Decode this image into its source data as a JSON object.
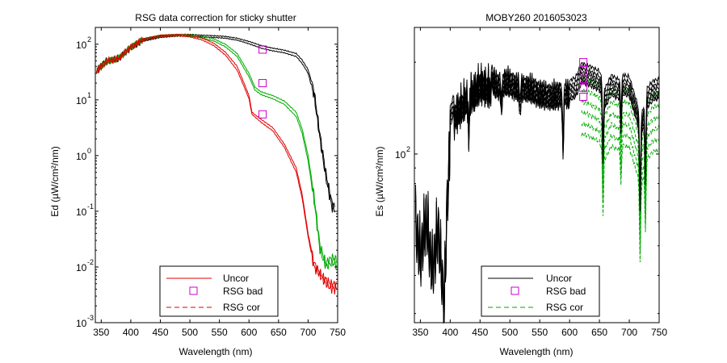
{
  "chart_data": [
    {
      "type": "line",
      "title": "RSG data correction for sticky shutter",
      "xlabel": "Wavelength (nm)",
      "ylabel": "Ed (µW/cm²/nm)",
      "xlim": [
        340,
        750
      ],
      "ylim": [
        0.001,
        200
      ],
      "y_scale": "log",
      "x_ticks": [
        350,
        400,
        450,
        500,
        550,
        600,
        650,
        700,
        750
      ],
      "y_ticks": [
        {
          "base": "10",
          "exp": "2",
          "value": 100
        },
        {
          "base": "10",
          "exp": "1",
          "value": 10
        },
        {
          "base": "10",
          "exp": "0",
          "value": 1
        },
        {
          "base": "10",
          "exp": "-1",
          "value": 0.1
        },
        {
          "base": "10",
          "exp": "-2",
          "value": 0.01
        },
        {
          "base": "10",
          "exp": "-3",
          "value": 0.001
        }
      ],
      "legend": {
        "location": "lower-center",
        "entries": [
          "Uncor",
          "RSG bad",
          "RSG cor"
        ]
      },
      "colors": {
        "uncor": "#000000",
        "green": "#00aa00",
        "red": "#e00000",
        "rsg_bad": "#cc00cc"
      },
      "series": [
        {
          "name": "Uncor",
          "x": [
            342,
            350,
            360,
            380,
            400,
            420,
            450,
            480,
            500,
            520,
            540,
            560,
            580,
            600,
            620,
            640,
            660,
            680,
            690,
            700,
            710,
            720,
            730,
            740,
            745
          ],
          "values": [
            35,
            42,
            52,
            58,
            90,
            120,
            140,
            148,
            150,
            145,
            142,
            138,
            128,
            112,
            95,
            85,
            78,
            68,
            52,
            35,
            15,
            2.5,
            0.5,
            0.15,
            0.12
          ]
        },
        {
          "name": "Uncor",
          "x": [
            342,
            350,
            360,
            380,
            400,
            420,
            450,
            480,
            500,
            520,
            540,
            560,
            580,
            600,
            620,
            640,
            660,
            680,
            690,
            700,
            710,
            720,
            730,
            740,
            745
          ],
          "values": [
            32,
            38,
            48,
            54,
            85,
            112,
            132,
            140,
            140,
            135,
            132,
            128,
            118,
            102,
            85,
            76,
            70,
            60,
            45,
            30,
            12,
            2.0,
            0.4,
            0.12,
            0.1
          ]
        },
        {
          "name": "RSG cor",
          "x": [
            342,
            350,
            360,
            380,
            400,
            420,
            450,
            480,
            500,
            520,
            540,
            560,
            580,
            600,
            610,
            620,
            640,
            660,
            680,
            690,
            700,
            710,
            720,
            730,
            740,
            748
          ],
          "values": [
            35,
            42,
            52,
            58,
            92,
            125,
            145,
            150,
            148,
            140,
            125,
            100,
            68,
            30,
            17,
            14,
            12,
            9.5,
            6.0,
            3.0,
            1.0,
            0.2,
            0.025,
            0.012,
            0.015,
            0.014
          ]
        },
        {
          "name": "RSG cor",
          "x": [
            342,
            350,
            360,
            380,
            400,
            420,
            450,
            480,
            500,
            520,
            540,
            560,
            580,
            600,
            610,
            620,
            640,
            660,
            680,
            690,
            700,
            710,
            720,
            730,
            740,
            748
          ],
          "values": [
            32,
            38,
            48,
            54,
            86,
            116,
            136,
            142,
            138,
            130,
            115,
            90,
            60,
            26,
            15,
            12.5,
            10.5,
            8.3,
            5.0,
            2.5,
            0.8,
            0.16,
            0.02,
            0.01,
            0.012,
            0.011
          ]
        },
        {
          "name": "Uncor",
          "x": [
            342,
            350,
            360,
            380,
            400,
            420,
            450,
            480,
            500,
            520,
            540,
            560,
            580,
            590,
            600,
            605,
            620,
            640,
            660,
            680,
            690,
            700,
            710,
            720,
            730,
            740,
            748
          ],
          "values": [
            35,
            42,
            52,
            58,
            92,
            125,
            145,
            150,
            145,
            130,
            105,
            72,
            40,
            22,
            12,
            6.0,
            4.5,
            3.2,
            1.6,
            0.6,
            0.2,
            0.04,
            0.012,
            0.008,
            0.006,
            0.005,
            0.005
          ]
        },
        {
          "name": "Uncor",
          "x": [
            342,
            350,
            360,
            380,
            400,
            420,
            450,
            480,
            500,
            520,
            540,
            560,
            580,
            590,
            600,
            605,
            620,
            640,
            660,
            680,
            690,
            700,
            710,
            720,
            730,
            740,
            748
          ],
          "values": [
            32,
            38,
            48,
            54,
            86,
            116,
            136,
            142,
            135,
            120,
            95,
            64,
            34,
            19,
            10.5,
            5.5,
            4.0,
            2.8,
            1.4,
            0.5,
            0.17,
            0.035,
            0.01,
            0.007,
            0.005,
            0.004,
            0.004
          ]
        }
      ],
      "rsg_bad": {
        "x": [
          623,
          623,
          623
        ],
        "values": [
          80,
          20,
          5.5
        ]
      }
    },
    {
      "type": "line",
      "title": "MOBY260  2016053023",
      "xlabel": "Wavelength (nm)",
      "ylabel": "Es (µW/cm²/nm)",
      "xlim": [
        340,
        750
      ],
      "ylim": [
        28,
        260
      ],
      "y_scale": "log",
      "y_ticks": [
        {
          "base": "10",
          "exp": "2",
          "value": 100
        }
      ],
      "x_ticks": [
        350,
        400,
        450,
        500,
        550,
        600,
        650,
        700,
        750
      ],
      "legend": {
        "location": "lower-center",
        "entries": [
          "Uncor",
          "RSG bad",
          "RSG cor"
        ]
      },
      "colors": {
        "uncor": "#000000",
        "green": "#00aa00",
        "rsg_bad": "#cc00cc"
      },
      "base_curve": {
        "x": [
          342,
          350,
          360,
          370,
          380,
          390,
          395,
          400,
          410,
          420,
          430,
          440,
          450,
          460,
          470,
          480,
          490,
          500,
          510,
          520,
          530,
          540,
          550,
          560,
          570,
          580,
          590,
          600,
          610,
          620,
          630,
          640,
          650,
          660,
          670,
          680,
          690,
          700,
          710,
          720,
          730,
          740,
          750
        ],
        "values": [
          75,
          58,
          78,
          52,
          72,
          40,
          90,
          130,
          150,
          158,
          170,
          175,
          185,
          182,
          178,
          172,
          176,
          175,
          171,
          170,
          168,
          166,
          162,
          160,
          158,
          160,
          165,
          158,
          162,
          180,
          178,
          174,
          170,
          150,
          165,
          160,
          165,
          163,
          140,
          120,
          150,
          158,
          160
        ]
      },
      "profile_factors": [
        1.1,
        1.06,
        1.03,
        1.0,
        0.97,
        0.95
      ],
      "green_offsets": [
        0.9,
        0.85,
        0.8,
        0.76,
        0.72,
        0.68
      ],
      "rsg_bad": {
        "x": [
          623,
          623,
          623,
          623,
          623
        ],
        "values": [
          200,
          188,
          176,
          165,
          154
        ]
      }
    }
  ]
}
